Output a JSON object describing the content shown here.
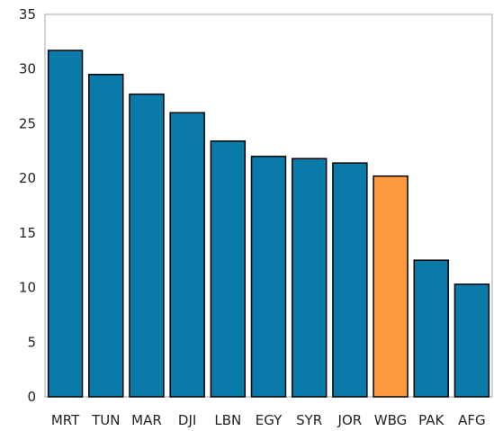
{
  "chart_data": {
    "type": "bar",
    "categories": [
      "MRT",
      "TUN",
      "MAR",
      "DJI",
      "LBN",
      "EGY",
      "SYR",
      "JOR",
      "WBG",
      "PAK",
      "AFG"
    ],
    "values": [
      31.7,
      29.5,
      27.7,
      26.0,
      23.4,
      22.0,
      21.8,
      21.4,
      20.2,
      12.5,
      10.3
    ],
    "highlight": [
      "WBG"
    ],
    "ylim": [
      0,
      35
    ],
    "yticks": [
      0,
      5,
      10,
      15,
      20,
      25,
      30,
      35
    ],
    "grid": false,
    "legend": "none",
    "title": "",
    "xlabel": "",
    "ylabel": "",
    "colors": {
      "bar": "#0a7aa8",
      "highlight": "#fd9a40",
      "bar_edge": "#000000",
      "axis": "#a6a6a6"
    }
  }
}
